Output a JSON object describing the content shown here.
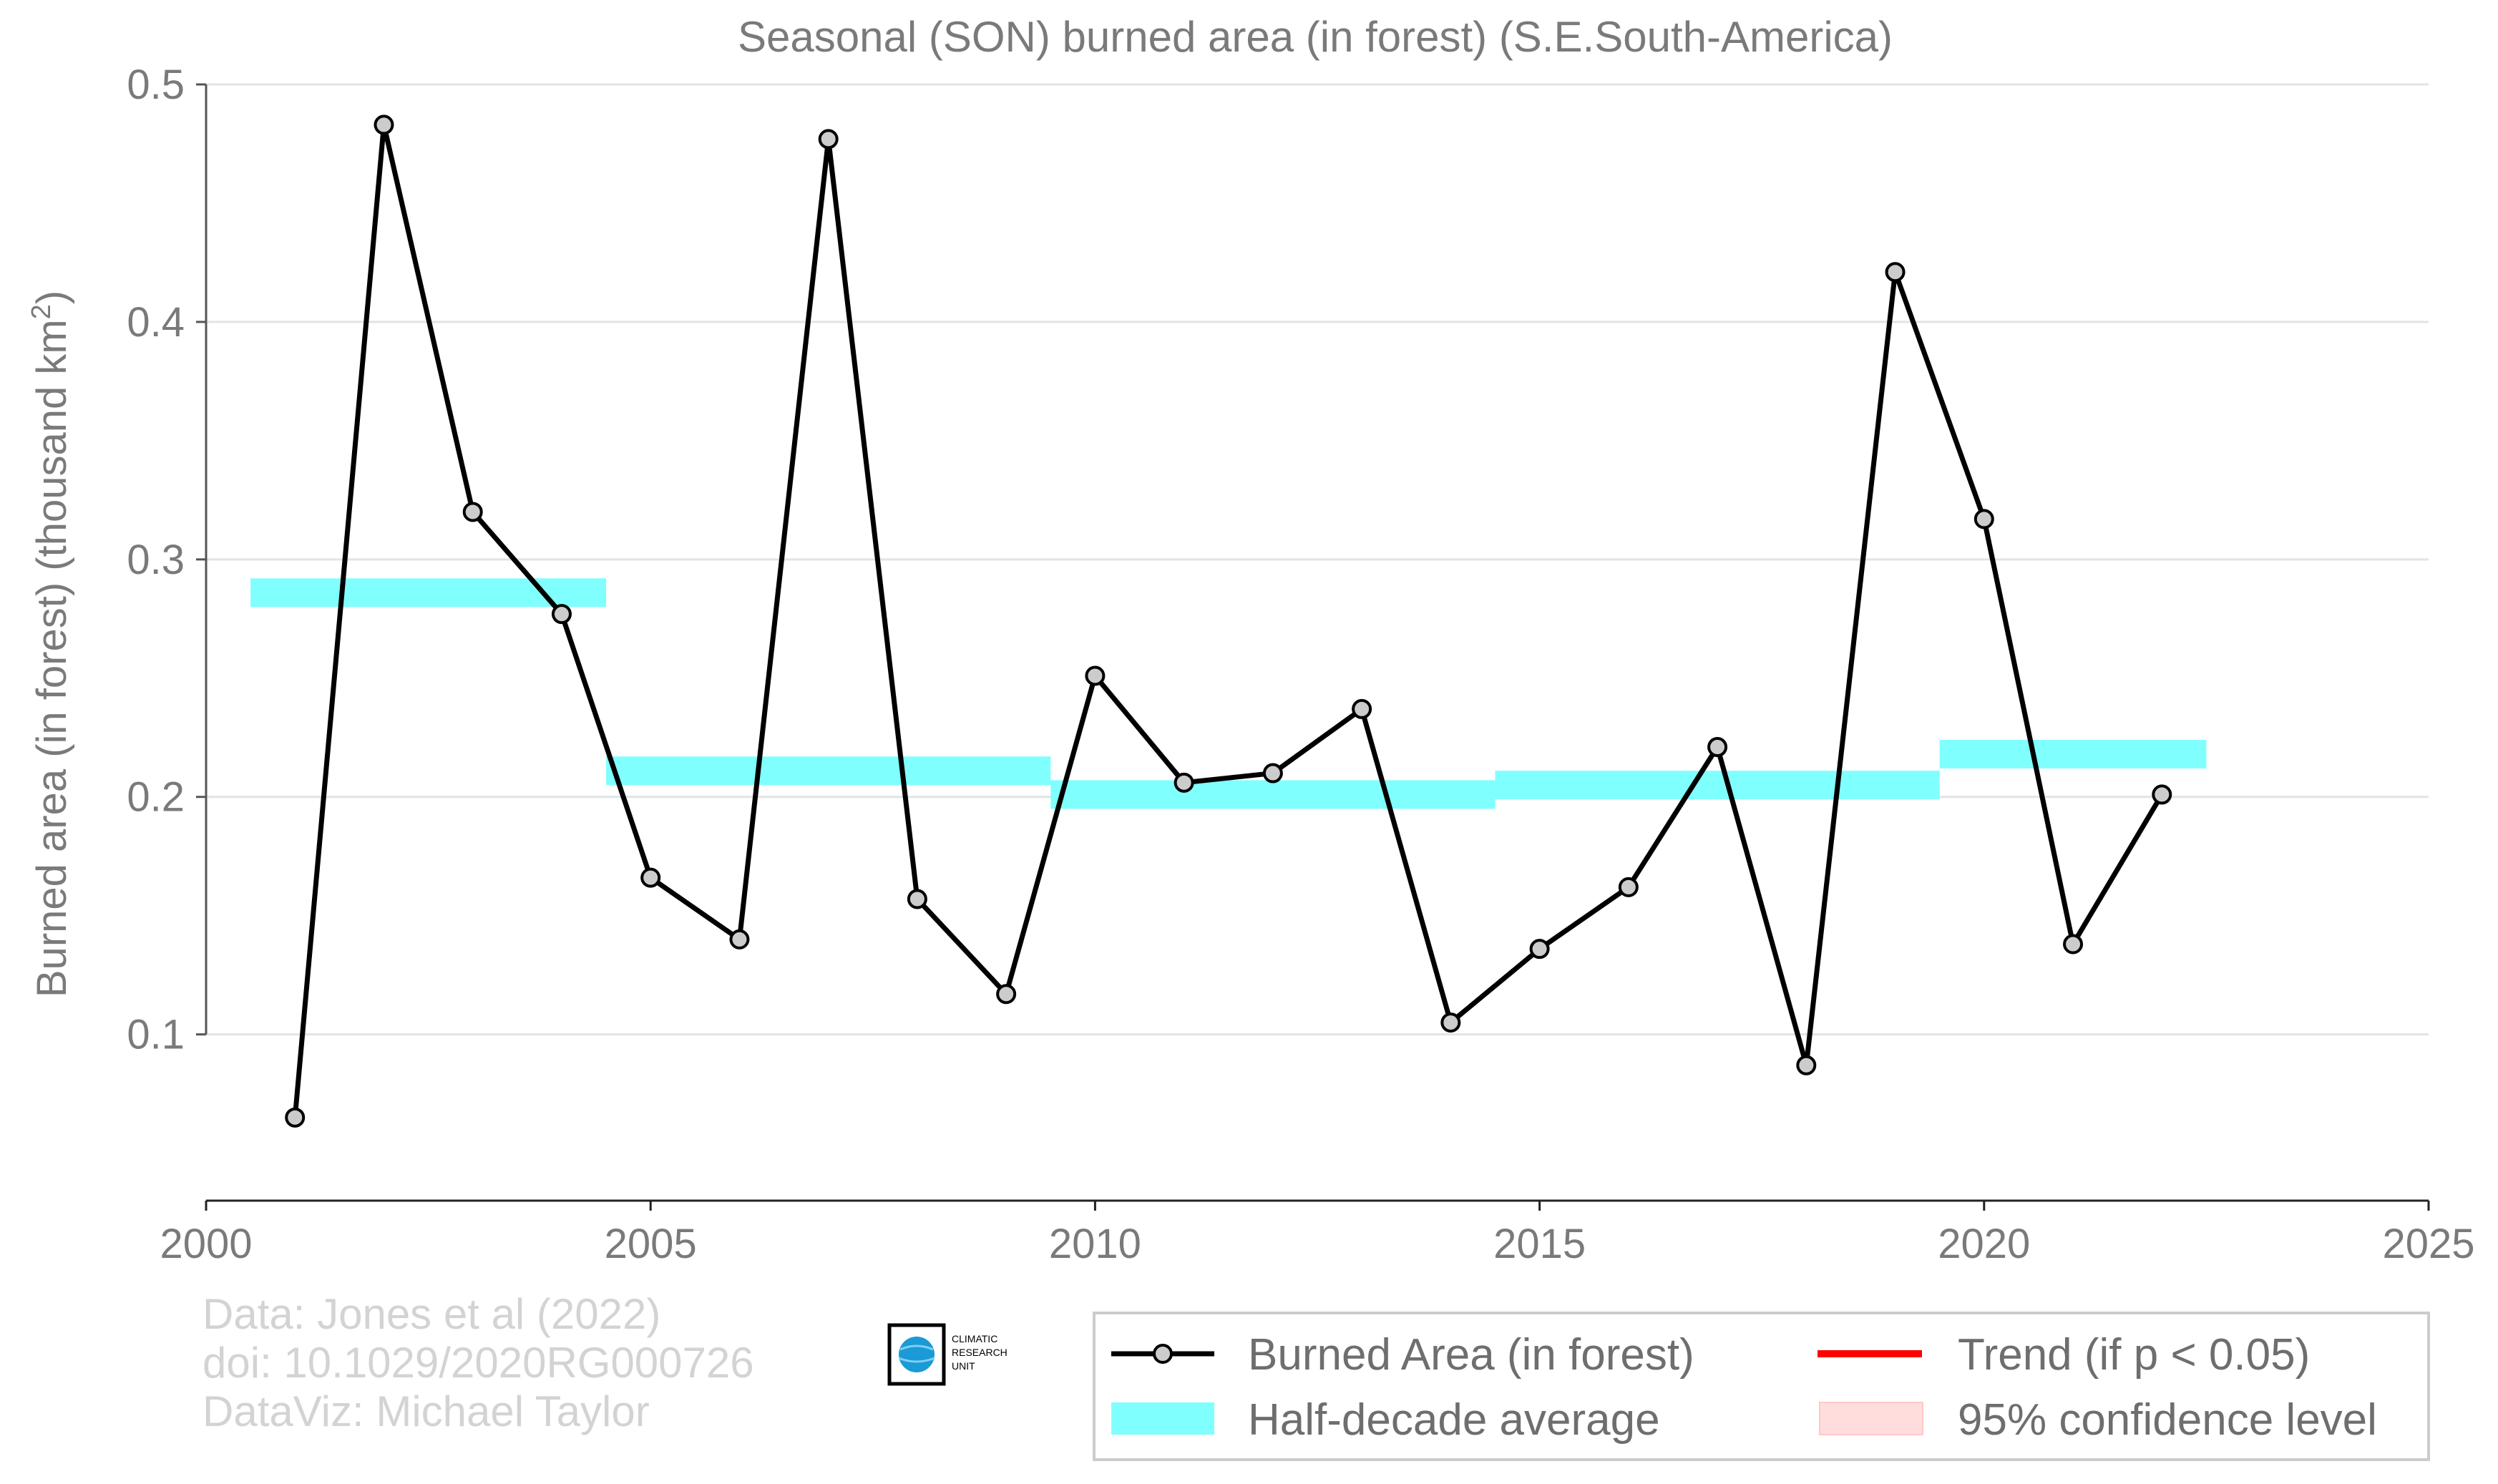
{
  "chart_data": {
    "type": "line",
    "title": "Seasonal (SON) burned area (in forest) (S.E.South-America)",
    "ylabel": "Burned area (in forest) (thousand km",
    "ylabel_superscript": "2",
    "ylabel_suffix": ")",
    "xlabel": "",
    "xlim": [
      2000,
      2025
    ],
    "ylim": [
      0.03,
      0.5
    ],
    "x_ticks": [
      2000,
      2005,
      2010,
      2015,
      2020,
      2025
    ],
    "y_ticks": [
      0.1,
      0.2,
      0.3,
      0.4,
      0.5
    ],
    "grid": "horizontal",
    "legend_position": "bottom-right",
    "series": [
      {
        "name": "Burned Area (in forest)",
        "color": "#000000",
        "marker_fill": "#cccccc",
        "x": [
          2001,
          2002,
          2003,
          2004,
          2005,
          2006,
          2007,
          2008,
          2009,
          2010,
          2011,
          2012,
          2013,
          2014,
          2015,
          2016,
          2017,
          2018,
          2019,
          2020,
          2021,
          2022
        ],
        "y": [
          0.065,
          0.483,
          0.32,
          0.277,
          0.166,
          0.14,
          0.477,
          0.157,
          0.117,
          0.251,
          0.206,
          0.21,
          0.237,
          0.105,
          0.136,
          0.162,
          0.221,
          0.087,
          0.421,
          0.317,
          0.138,
          0.201
        ]
      }
    ],
    "half_decade_average": {
      "name": "Half-decade average",
      "color": "#80ffff",
      "segments": [
        {
          "x0": 2000.5,
          "x1": 2004.5,
          "y": 0.286
        },
        {
          "x0": 2004.5,
          "x1": 2009.5,
          "y": 0.211
        },
        {
          "x0": 2009.5,
          "x1": 2014.5,
          "y": 0.201
        },
        {
          "x0": 2014.5,
          "x1": 2019.5,
          "y": 0.205
        },
        {
          "x0": 2019.5,
          "x1": 2022.5,
          "y": 0.218
        }
      ]
    },
    "legend": [
      {
        "label": "Burned Area (in forest)",
        "kind": "line-marker",
        "color": "#000000"
      },
      {
        "label": "Trend (if p < 0.05)",
        "kind": "line",
        "color": "#ff0000"
      },
      {
        "label": "Half-decade average",
        "kind": "band",
        "color": "#80ffff"
      },
      {
        "label": "95% confidence level",
        "kind": "band",
        "color": "#ffdddd"
      }
    ]
  },
  "credits": [
    "Data: Jones et al (2022)",
    "doi: 10.1029/2020RG000726",
    "DataViz: Michael Taylor"
  ],
  "logo": {
    "text": [
      "CLIMATIC",
      "RESEARCH",
      "UNIT"
    ],
    "globe_color": "#1a9ad6"
  }
}
